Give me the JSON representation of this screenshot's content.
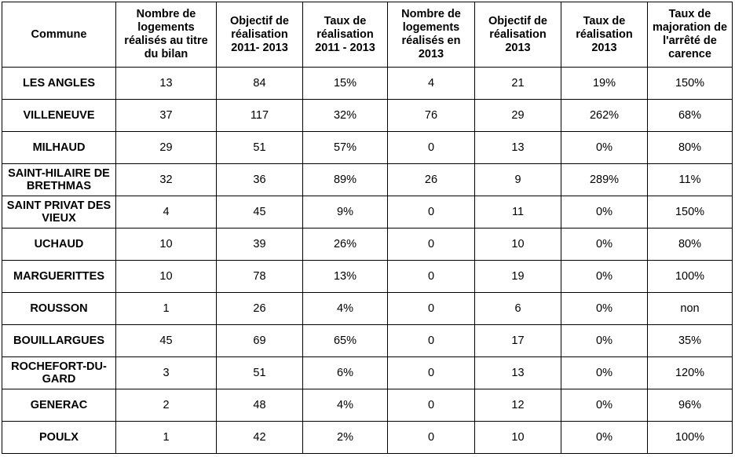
{
  "table": {
    "headers": [
      "Commune",
      "Nombre de logements réalisés au titre du bilan",
      "Objectif de réalisation 2011- 2013",
      "Taux de réalisation 2011 - 2013",
      "Nombre de logements réalisés en 2013",
      "Objectif de réalisation 2013",
      "Taux de réalisation 2013",
      "Taux de majoration de l'arrêté de carence"
    ],
    "rows": [
      [
        "LES ANGLES",
        "13",
        "84",
        "15%",
        "4",
        "21",
        "19%",
        "150%"
      ],
      [
        "VILLENEUVE",
        "37",
        "117",
        "32%",
        "76",
        "29",
        "262%",
        "68%"
      ],
      [
        "MILHAUD",
        "29",
        "51",
        "57%",
        "0",
        "13",
        "0%",
        "80%"
      ],
      [
        "SAINT-HILAIRE DE BRETHMAS",
        "32",
        "36",
        "89%",
        "26",
        "9",
        "289%",
        "11%"
      ],
      [
        "SAINT PRIVAT DES VIEUX",
        "4",
        "45",
        "9%",
        "0",
        "11",
        "0%",
        "150%"
      ],
      [
        "UCHAUD",
        "10",
        "39",
        "26%",
        "0",
        "10",
        "0%",
        "80%"
      ],
      [
        "MARGUERITTES",
        "10",
        "78",
        "13%",
        "0",
        "19",
        "0%",
        "100%"
      ],
      [
        "ROUSSON",
        "1",
        "26",
        "4%",
        "0",
        "6",
        "0%",
        "non"
      ],
      [
        "BOUILLARGUES",
        "45",
        "69",
        "65%",
        "0",
        "17",
        "0%",
        "35%"
      ],
      [
        "ROCHEFORT-DU-GARD",
        "3",
        "51",
        "6%",
        "0",
        "13",
        "0%",
        "120%"
      ],
      [
        "GENERAC",
        "2",
        "48",
        "4%",
        "0",
        "12",
        "0%",
        "96%"
      ],
      [
        "POULX",
        "1",
        "42",
        "2%",
        "0",
        "10",
        "0%",
        "100%"
      ]
    ]
  }
}
